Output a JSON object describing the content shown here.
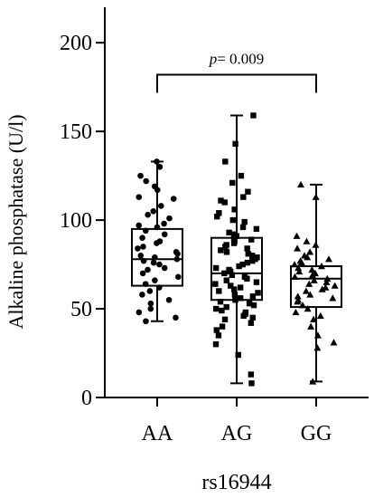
{
  "chart_data": {
    "type": "box",
    "xlabel": "rs16944",
    "ylabel": "Alkaline phosphatase (U/l)",
    "ylim": [
      0,
      220
    ],
    "yticks": [
      0,
      50,
      100,
      150,
      200
    ],
    "categories": [
      "AA",
      "AG",
      "GG"
    ],
    "groups": [
      {
        "label": "AA",
        "marker": "circle",
        "min": 43,
        "q1": 63,
        "median": 78,
        "q3": 95,
        "max": 133,
        "points": [
          133,
          130,
          125,
          122,
          119,
          117,
          113,
          112,
          108,
          105,
          103,
          101,
          98,
          97,
          96,
          94,
          92,
          90,
          88,
          87,
          85,
          84,
          82,
          81,
          80,
          79,
          78,
          77,
          76,
          75,
          73,
          72,
          70,
          68,
          66,
          64,
          62,
          60,
          58,
          55,
          53,
          50,
          48,
          45,
          43
        ]
      },
      {
        "label": "AG",
        "marker": "square",
        "min": 8,
        "q1": 55,
        "median": 70,
        "q3": 90,
        "max": 159,
        "points": [
          159,
          143,
          133,
          125,
          121,
          116,
          113,
          111,
          110,
          106,
          104,
          102,
          100,
          99,
          96,
          95,
          93,
          92,
          91,
          90,
          89,
          88,
          87,
          86,
          85,
          84,
          83,
          82,
          81,
          80,
          79,
          78,
          77,
          76,
          75,
          74,
          73,
          72,
          71,
          70,
          69,
          68,
          67,
          66,
          65,
          64,
          63,
          62,
          61,
          60,
          59,
          58,
          57,
          56,
          55,
          54,
          53,
          52,
          51,
          50,
          49,
          48,
          47,
          46,
          45,
          44,
          42,
          40,
          38,
          35,
          30,
          24,
          13,
          8
        ]
      },
      {
        "label": "GG",
        "marker": "triangle",
        "min": 9,
        "q1": 51,
        "median": 67,
        "q3": 74,
        "max": 120,
        "points": [
          120,
          113,
          91,
          88,
          86,
          84,
          82,
          80,
          79,
          78,
          77,
          76,
          75,
          74,
          73,
          72,
          71,
          70,
          69,
          68,
          67,
          66,
          65,
          64,
          63,
          62,
          61,
          60,
          58,
          57,
          56,
          55,
          54,
          52,
          50,
          48,
          46,
          44,
          40,
          35,
          31,
          28,
          9
        ]
      }
    ],
    "annotation": {
      "text_italic": "p",
      "text": "= 0.009",
      "from": "AA",
      "to": "GG",
      "y": 182
    }
  }
}
